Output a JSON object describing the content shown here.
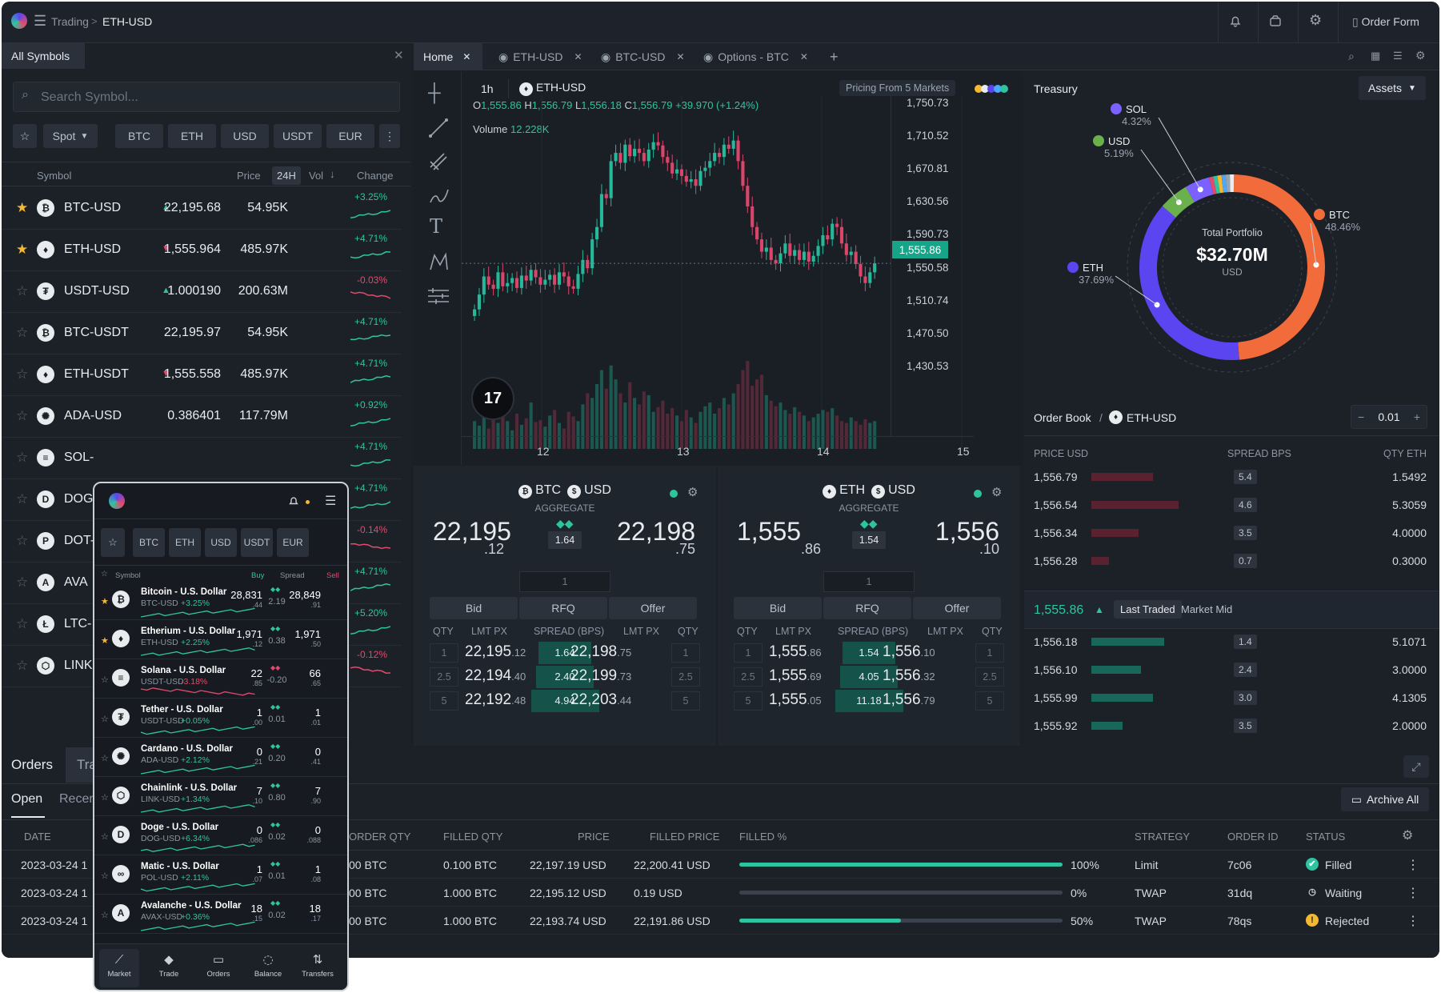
{
  "topbar": {
    "crumb_root": "Trading",
    "crumb_sep": ">",
    "crumb_current": "ETH-USD",
    "order_form": "Order Form"
  },
  "symbols": {
    "panel_title": "All Symbols",
    "search_placeholder": "Search Symbol...",
    "type_filter": "Spot",
    "quote_filters": [
      "BTC",
      "ETH",
      "USD",
      "USDT",
      "EUR"
    ],
    "col_symbol": "Symbol",
    "col_price": "Price",
    "col_24h": "24H",
    "col_vol": "Vol",
    "col_change": "Change",
    "rows": [
      {
        "name": "BTC-USD",
        "glyph": "₿",
        "price": "22,195.68",
        "vol": "54.95K",
        "change": "+3.25%",
        "starred": true,
        "dir": "up"
      },
      {
        "name": "ETH-USD",
        "glyph": "♦",
        "price": "1,555.964",
        "vol": "485.97K",
        "change": "+4.71%",
        "starred": true,
        "dir": "down"
      },
      {
        "name": "USDT-USD",
        "glyph": "₮",
        "price": "1.000190",
        "vol": "200.63M",
        "change": "-0.03%",
        "starred": false,
        "dir": "up"
      },
      {
        "name": "BTC-USDT",
        "glyph": "₿",
        "price": "22,195.97",
        "vol": "54.95K",
        "change": "+4.71%",
        "starred": false,
        "dir": ""
      },
      {
        "name": "ETH-USDT",
        "glyph": "♦",
        "price": "1,555.558",
        "vol": "485.97K",
        "change": "+4.71%",
        "starred": false,
        "dir": "down"
      },
      {
        "name": "ADA-USD",
        "glyph": "✺",
        "price": "0.386401",
        "vol": "117.79M",
        "change": "+0.92%",
        "starred": false,
        "dir": ""
      },
      {
        "name": "SOL-",
        "glyph": "≡",
        "price": "",
        "vol": "",
        "change": "+4.71%",
        "starred": false,
        "dir": ""
      },
      {
        "name": "DOG",
        "glyph": "D",
        "price": "",
        "vol": "",
        "change": "+4.71%",
        "starred": false,
        "dir": ""
      },
      {
        "name": "DOT-",
        "glyph": "P",
        "price": "",
        "vol": "",
        "change": "-0.14%",
        "starred": false,
        "dir": ""
      },
      {
        "name": "AVA",
        "glyph": "A",
        "price": "",
        "vol": "",
        "change": "+4.71%",
        "starred": false,
        "dir": ""
      },
      {
        "name": "LTC-",
        "glyph": "Ł",
        "price": "",
        "vol": "",
        "change": "+5.20%",
        "starred": false,
        "dir": ""
      },
      {
        "name": "LINK",
        "glyph": "⬡",
        "price": "",
        "vol": "",
        "change": "-0.12%",
        "starred": false,
        "dir": ""
      }
    ]
  },
  "tabs": [
    "Home",
    "ETH-USD",
    "BTC-USD",
    "Options - BTC"
  ],
  "chart": {
    "interval": "1h",
    "symbol": "ETH-USD",
    "pricing_from": "Pricing From 5 Markets",
    "ohlc": {
      "o_label": "O",
      "o": "1,555.86",
      "h_label": "H",
      "h": "1,556.79",
      "l_label": "L",
      "l": "1,556.18",
      "c_label": "C",
      "c": "1,556.79",
      "chg": "+39.970 (+1.24%)"
    },
    "volume_label": "Volume",
    "volume": "12.228K",
    "last_price": "1,555.86"
  },
  "chart_data": {
    "type": "candlestick",
    "y_ticks": [
      "1,750.73",
      "1,710.52",
      "1,670.81",
      "1,630.56",
      "1,590.73",
      "1,550.58",
      "1,510.74",
      "1,470.50",
      "1,430.53"
    ],
    "x_ticks": [
      "12",
      "13",
      "14",
      "15"
    ],
    "ylim": [
      1420,
      1760
    ],
    "closes": [
      1500,
      1518,
      1540,
      1530,
      1525,
      1545,
      1528,
      1532,
      1538,
      1526,
      1541,
      1535,
      1548,
      1539,
      1530,
      1536,
      1542,
      1530,
      1545,
      1540,
      1528,
      1525,
      1543,
      1560,
      1550,
      1585,
      1600,
      1640,
      1635,
      1680,
      1690,
      1678,
      1700,
      1686,
      1695,
      1690,
      1680,
      1694,
      1703,
      1699,
      1685,
      1678,
      1665,
      1670,
      1662,
      1655,
      1658,
      1650,
      1668,
      1672,
      1680,
      1690,
      1685,
      1700,
      1695,
      1705,
      1680,
      1650,
      1625,
      1600,
      1585,
      1570,
      1575,
      1560,
      1556,
      1568,
      1580,
      1565,
      1572,
      1560,
      1570,
      1558,
      1565,
      1577,
      1590,
      1585,
      1604,
      1600,
      1580,
      1566,
      1570,
      1555,
      1540,
      1532,
      1545,
      1556
    ],
    "volumes": [
      30,
      25,
      40,
      22,
      35,
      28,
      45,
      30,
      20,
      38,
      26,
      33,
      50,
      29,
      31,
      24,
      36,
      42,
      28,
      22,
      40,
      35,
      30,
      48,
      60,
      55,
      70,
      85,
      65,
      90,
      75,
      60,
      50,
      72,
      55,
      48,
      62,
      58,
      40,
      45,
      52,
      38,
      44,
      36,
      30,
      42,
      34,
      28,
      40,
      46,
      50,
      38,
      44,
      55,
      48,
      60,
      70,
      85,
      95,
      68,
      75,
      80,
      58,
      52,
      46,
      50,
      42,
      38,
      45,
      40,
      36,
      30,
      34,
      38,
      42,
      40,
      44,
      36,
      30,
      28,
      34,
      30,
      26,
      32,
      28,
      30
    ]
  },
  "ticket_btc": {
    "base": "BTC",
    "quote": "USD",
    "label": "AGGREGATE",
    "bid_big": "22,195",
    "bid_small": ".12",
    "spread": "1.64",
    "offer_big": "22,198",
    "offer_small": ".75",
    "qty_input": "1",
    "bid": "Bid",
    "rfq": "RFQ",
    "offer": "Offer",
    "h_qty": "QTY",
    "h_lmt": "LMT PX",
    "h_spread": "SPREAD (BPS)",
    "h_lmt2": "LMT PX",
    "h_qty2": "QTY",
    "rows": [
      {
        "q": "1",
        "bb": "22,195",
        "bs": ".12",
        "sp": "1.64",
        "ob": "22,198",
        "os": ".75",
        "q2": "1"
      },
      {
        "q": "2.5",
        "bb": "22,194",
        "bs": ".40",
        "sp": "2.40",
        "ob": "22,199",
        "os": ".73",
        "q2": "2.5"
      },
      {
        "q": "5",
        "bb": "22,192",
        "bs": ".48",
        "sp": "4.94",
        "ob": "22,203",
        "os": ".44",
        "q2": "5"
      }
    ]
  },
  "ticket_eth": {
    "base": "ETH",
    "quote": "USD",
    "label": "AGGREGATE",
    "bid_big": "1,555",
    "bid_small": ".86",
    "spread": "1.54",
    "offer_big": "1,556",
    "offer_small": ".10",
    "qty_input": "1",
    "bid": "Bid",
    "rfq": "RFQ",
    "offer": "Offer",
    "h_qty": "QTY",
    "h_lmt": "LMT PX",
    "h_spread": "SPREAD (BPS)",
    "h_lmt2": "LMT PX",
    "h_qty2": "QTY",
    "rows": [
      {
        "q": "1",
        "bb": "1,555",
        "bs": ".86",
        "sp": "1.54",
        "ob": "1,556",
        "os": ".10",
        "q2": "1"
      },
      {
        "q": "2.5",
        "bb": "1,555",
        "bs": ".69",
        "sp": "4.05",
        "ob": "1,556",
        "os": ".32",
        "q2": "2.5"
      },
      {
        "q": "5",
        "bb": "1,555",
        "bs": ".05",
        "sp": "11.18",
        "ob": "1,556",
        "os": ".79",
        "q2": "5"
      }
    ]
  },
  "treasury": {
    "title": "Treasury",
    "selector": "Assets",
    "center_label": "Total Portfolio",
    "center_value": "$32.70M",
    "center_unit": "USD",
    "assets": [
      {
        "name": "SOL",
        "pct": "4.32%",
        "value": 4.32,
        "color": "#7b61ff"
      },
      {
        "name": "USD",
        "pct": "5.19%",
        "value": 5.19,
        "color": "#6ab04c"
      },
      {
        "name": "BTC",
        "pct": "48.46%",
        "value": 48.46,
        "color": "#f26b3a"
      },
      {
        "name": "ETH",
        "pct": "37.69%",
        "value": 37.69,
        "color": "#5b45f0"
      }
    ]
  },
  "orderbook": {
    "title": "Order Book",
    "sep": "/",
    "symbol": "ETH-USD",
    "increment": "0.01",
    "col_price": "PRICE USD",
    "col_spread": "SPREAD BPS",
    "col_qty": "QTY ETH",
    "asks": [
      {
        "price": "1,556.79",
        "spread": "5.4",
        "qty": "1.5492",
        "depth": 0.55
      },
      {
        "price": "1,556.54",
        "spread": "4.6",
        "qty": "5.3059",
        "depth": 0.78
      },
      {
        "price": "1,556.34",
        "spread": "3.5",
        "qty": "4.0000",
        "depth": 0.42
      },
      {
        "price": "1,556.28",
        "spread": "0.7",
        "qty": "0.3000",
        "depth": 0.16
      }
    ],
    "mid_price": "1,555.86",
    "mid_tab_active": "Last Traded",
    "mid_tab": "Market Mid",
    "bids": [
      {
        "price": "1,556.18",
        "spread": "1.4",
        "qty": "5.1071",
        "depth": 0.65
      },
      {
        "price": "1,556.10",
        "spread": "2.4",
        "qty": "3.0000",
        "depth": 0.44
      },
      {
        "price": "1,555.99",
        "spread": "3.0",
        "qty": "4.1305",
        "depth": 0.55
      },
      {
        "price": "1,555.92",
        "spread": "3.5",
        "qty": "2.0000",
        "depth": 0.28
      }
    ]
  },
  "orders": {
    "title": "Orders",
    "tab2": "Tra",
    "sub_open": "Open",
    "sub_recent": "Recen",
    "archive": "Archive All",
    "h_date": "DATE",
    "h_order_qty": "ORDER QTY",
    "h_filled_qty": "FILLED QTY",
    "h_price": "PRICE",
    "h_filled_price": "FILLED PRICE",
    "h_filled_pct": "FILLED %",
    "h_strategy": "STRATEGY",
    "h_order_id": "ORDER ID",
    "h_status": "STATUS",
    "rows": [
      {
        "date": "2023-03-24 1",
        "oqty": "00 BTC",
        "fqty": "0.100 BTC",
        "price": "22,197.19 USD",
        "fprice": "22,200.41 USD",
        "pct": "100%",
        "fill": 1.0,
        "strategy": "Limit",
        "id": "7c06",
        "status": "Filled"
      },
      {
        "date": "2023-03-24 1",
        "oqty": "00 BTC",
        "fqty": "1.000 BTC",
        "price": "22,195.12 USD",
        "fprice": "0.19 USD",
        "pct": "0%",
        "fill": 0.0,
        "strategy": "TWAP",
        "id": "31dq",
        "status": "Waiting"
      },
      {
        "date": "2023-03-24 1",
        "oqty": "00 BTC",
        "fqty": "1.000 BTC",
        "price": "22,193.74 USD",
        "fprice": "22,191.86 USD",
        "pct": "50%",
        "fill": 0.5,
        "strategy": "TWAP",
        "id": "78qs",
        "status": "Rejected"
      }
    ]
  },
  "mobile": {
    "filters": [
      "BTC",
      "ETH",
      "USD",
      "USDT",
      "EUR"
    ],
    "h_symbol": "Symbol",
    "h_buy": "Buy",
    "h_spread": "Spread",
    "h_sell": "Sell",
    "rows": [
      {
        "name": "Bitcoin - U.S. Dollar",
        "pair": "BTC-USD",
        "chg": "+3.25%",
        "buy": "28,831",
        "buy_s": ".44",
        "spread": "2.19",
        "sell": "28,849",
        "sell_s": ".91",
        "glyph": "₿",
        "up": true
      },
      {
        "name": "Etherium - U.S. Dollar",
        "pair": "ETH-USD",
        "chg": "+2.25%",
        "buy": "1,971",
        "buy_s": ".12",
        "spread": "0.38",
        "sell": "1,971",
        "sell_s": ".50",
        "glyph": "♦",
        "up": true
      },
      {
        "name": "Solana - U.S. Dollar",
        "pair": "USDT-USD",
        "chg": "-3.18%",
        "buy": "22",
        "buy_s": ".85",
        "spread": "-0.20",
        "sell": "66",
        "sell_s": ".65",
        "glyph": "≡",
        "up": false
      },
      {
        "name": "Tether - U.S. Dollar",
        "pair": "USDT-USD",
        "chg": "+0.05%",
        "buy": "1",
        "buy_s": ".00",
        "spread": "0.01",
        "sell": "1",
        "sell_s": ".01",
        "glyph": "₮",
        "up": true
      },
      {
        "name": "Cardano - U.S. Dollar",
        "pair": "ADA-USD",
        "chg": "+2.12%",
        "buy": "0",
        "buy_s": ".21",
        "spread": "0.20",
        "sell": "0",
        "sell_s": ".41",
        "glyph": "✺",
        "up": true
      },
      {
        "name": "Chainlink - U.S. Dollar",
        "pair": "LINK-USD",
        "chg": "+1.34%",
        "buy": "7",
        "buy_s": ".10",
        "spread": "0.80",
        "sell": "7",
        "sell_s": ".90",
        "glyph": "⬡",
        "up": true
      },
      {
        "name": "Doge - U.S. Dollar",
        "pair": "DOG-USD",
        "chg": "+6.34%",
        "buy": "0",
        "buy_s": ".086",
        "spread": "0.02",
        "sell": "0",
        "sell_s": ".088",
        "glyph": "D",
        "up": true
      },
      {
        "name": "Matic - U.S. Dollar",
        "pair": "POL-USD",
        "chg": "+2.11%",
        "buy": "1",
        "buy_s": ".07",
        "spread": "0.01",
        "sell": "1",
        "sell_s": ".08",
        "glyph": "∞",
        "up": true
      },
      {
        "name": "Avalanche - U.S. Dollar",
        "pair": "AVAX-USD",
        "chg": "+0.36%",
        "buy": "18",
        "buy_s": ".15",
        "spread": "0.02",
        "sell": "18",
        "sell_s": ".17",
        "glyph": "A",
        "up": true
      }
    ],
    "nav": [
      "Market",
      "Trade",
      "Orders",
      "Balance",
      "Transfers"
    ]
  }
}
